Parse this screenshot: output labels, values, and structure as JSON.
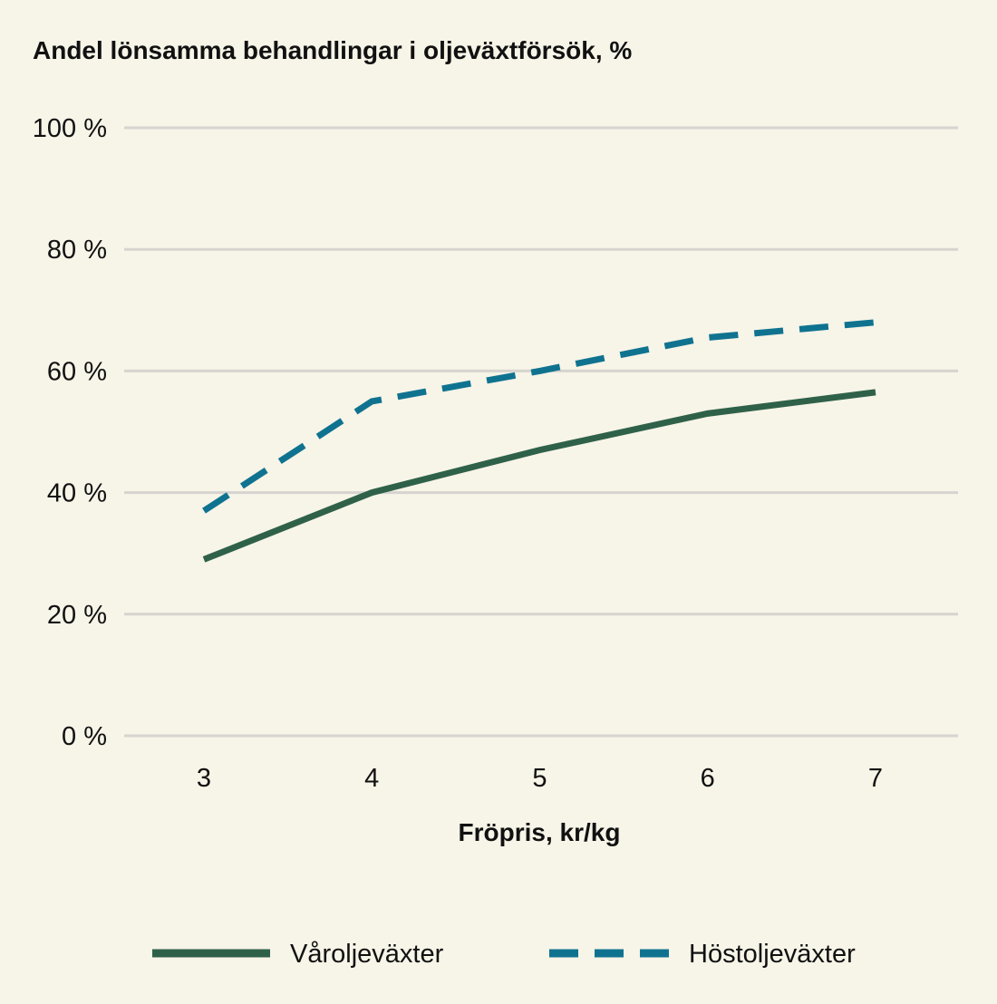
{
  "chart_data": {
    "type": "line",
    "title": "Andel lönsamma behandlingar i oljeväxtförsök, %",
    "xlabel": "Fröpris, kr/kg",
    "ylabel": "",
    "x": [
      3,
      4,
      5,
      6,
      7
    ],
    "x_tick_labels": [
      "3",
      "4",
      "5",
      "6",
      "7"
    ],
    "ylim": [
      0,
      100
    ],
    "y_ticks": [
      0,
      20,
      40,
      60,
      80,
      100
    ],
    "y_tick_labels": [
      "0 %",
      "20 %",
      "40 %",
      "60 %",
      "80 %",
      "100 %"
    ],
    "grid": true,
    "legend_position": "bottom",
    "series": [
      {
        "name": "Våroljeväxter",
        "values": [
          29,
          40,
          47,
          53,
          56.5
        ],
        "color": "#2f6149",
        "style": "solid"
      },
      {
        "name": "Höstoljeväxter",
        "values": [
          37,
          55,
          60,
          65.5,
          68
        ],
        "color": "#0f7390",
        "style": "dashed"
      }
    ]
  }
}
